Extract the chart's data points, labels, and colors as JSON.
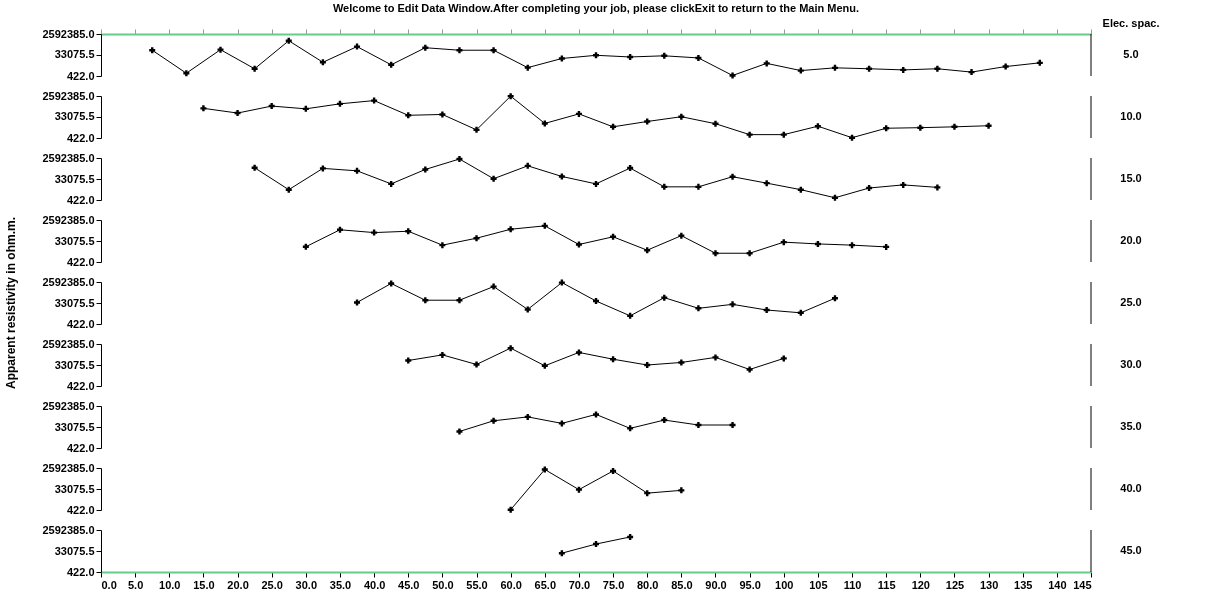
{
  "chart_data": [
    {
      "type": "line",
      "title": "Welcome to Edit Data Window.After completing your job, please clickExit to return to the Main Menu.",
      "annotations": [
        "5.0",
        "Elec. spac."
      ],
      "log": true,
      "marker": "cross",
      "tick_labels": "y",
      "xlim": [
        0,
        145
      ],
      "ylim": [
        422,
        2592385
      ],
      "yticks": [
        {
          "value": 422,
          "label": "422.0"
        },
        {
          "value": 33075.5,
          "label": "33075.5"
        },
        {
          "value": 2592385,
          "label": "2592385.0"
        }
      ],
      "x": [
        7.5,
        12.5,
        17.5,
        22.5,
        27.5,
        32.5,
        37.5,
        42.5,
        47.5,
        52.5,
        57.5,
        62.5,
        67.5,
        72.5,
        77.5,
        82.5,
        87.5,
        92.5,
        97.5,
        102.5,
        107.5,
        112.5,
        117.5,
        122.5,
        127.5,
        132.5,
        137.5
      ],
      "series": [
        {
          "color": "#000000",
          "values": [
            89000,
            750,
            100000,
            1900,
            640000,
            7300,
            190000,
            4300,
            150000,
            89000,
            89000,
            2400,
            16000,
            31000,
            22000,
            28000,
            18000,
            470,
            5800,
            1300,
            2300,
            1900,
            1500,
            1900,
            950,
            3000,
            6500
          ]
        }
      ]
    },
    {
      "type": "line",
      "annotations": [
        "10.0"
      ],
      "log": true,
      "marker": "cross",
      "tick_labels": "y",
      "xlim": [
        0,
        145
      ],
      "ylim": [
        422,
        2592385
      ],
      "yticks": [
        {
          "value": 422,
          "label": "422.0"
        },
        {
          "value": 33075.5,
          "label": "33075.5"
        },
        {
          "value": 2592385,
          "label": "2592385.0"
        }
      ],
      "x": [
        15,
        20,
        25,
        30,
        35,
        40,
        45,
        50,
        55,
        60,
        65,
        70,
        75,
        80,
        85,
        90,
        95,
        100,
        105,
        110,
        115,
        120,
        125,
        130
      ],
      "series": [
        {
          "color": "#000000",
          "values": [
            200000,
            75000,
            320000,
            180000,
            510000,
            1000000,
            47000,
            56000,
            2300,
            2500000,
            8700,
            63000,
            4300,
            13000,
            35000,
            8200,
            850,
            850,
            4900,
            450,
            3200,
            3600,
            4300,
            5400
          ]
        }
      ]
    },
    {
      "type": "line",
      "annotations": [
        "15.0"
      ],
      "log": true,
      "marker": "cross",
      "tick_labels": "y",
      "xlim": [
        0,
        145
      ],
      "ylim": [
        422,
        2592385
      ],
      "yticks": [
        {
          "value": 422,
          "label": "422.0"
        },
        {
          "value": 33075.5,
          "label": "33075.5"
        },
        {
          "value": 2592385,
          "label": "2592385.0"
        }
      ],
      "x": [
        22.5,
        27.5,
        32.5,
        37.5,
        42.5,
        47.5,
        52.5,
        57.5,
        62.5,
        67.5,
        72.5,
        77.5,
        82.5,
        87.5,
        92.5,
        97.5,
        102.5,
        107.5,
        112.5,
        117.5,
        122.5
      ],
      "series": [
        {
          "color": "#000000",
          "values": [
            340000,
            3600,
            300000,
            180000,
            12000,
            240000,
            2100000,
            35000,
            510000,
            56000,
            12000,
            320000,
            6500,
            6500,
            53000,
            14000,
            3600,
            670,
            5100,
            9700,
            5800
          ]
        }
      ]
    },
    {
      "type": "line",
      "annotations": [
        "20.0"
      ],
      "log": true,
      "marker": "cross",
      "tick_labels": "y",
      "xlim": [
        0,
        145
      ],
      "ylim": [
        422,
        2592385
      ],
      "yticks": [
        {
          "value": 422,
          "label": "422.0"
        },
        {
          "value": 33075.5,
          "label": "33075.5"
        },
        {
          "value": 2592385,
          "label": "2592385.0"
        }
      ],
      "x": [
        30,
        35,
        40,
        45,
        50,
        55,
        60,
        65,
        70,
        75,
        80,
        85,
        90,
        95,
        100,
        105,
        110,
        115
      ],
      "series": [
        {
          "color": "#000000",
          "values": [
            10000,
            340000,
            190000,
            250000,
            14000,
            59000,
            380000,
            770000,
            16000,
            79000,
            4900,
            100000,
            2600,
            2600,
            26000,
            18000,
            14000,
            9700
          ]
        }
      ]
    },
    {
      "type": "line",
      "annotations": [
        "25.0"
      ],
      "ylabel": "Apparent resistivity in ohm.m.",
      "log": true,
      "marker": "cross",
      "tick_labels": "y",
      "xlim": [
        0,
        145
      ],
      "ylim": [
        422,
        2592385
      ],
      "yticks": [
        {
          "value": 422,
          "label": "422.0"
        },
        {
          "value": 33075.5,
          "label": "33075.5"
        },
        {
          "value": 2592385,
          "label": "2592385.0"
        }
      ],
      "x": [
        37.5,
        42.5,
        47.5,
        52.5,
        57.5,
        62.5,
        67.5,
        72.5,
        77.5,
        82.5,
        87.5,
        92.5,
        97.5,
        102.5,
        107.5
      ],
      "series": [
        {
          "color": "#000000",
          "values": [
            37000,
            1900000,
            59000,
            59000,
            1000000,
            8700,
            2300000,
            50000,
            2300,
            100000,
            11000,
            25000,
            7700,
            4300,
            89000
          ]
        }
      ]
    },
    {
      "type": "line",
      "annotations": [
        "30.0"
      ],
      "log": true,
      "marker": "cross",
      "tick_labels": "y",
      "xlim": [
        0,
        145
      ],
      "ylim": [
        422,
        2592385
      ],
      "yticks": [
        {
          "value": 422,
          "label": "422.0"
        },
        {
          "value": 33075.5,
          "label": "33075.5"
        },
        {
          "value": 2592385,
          "label": "2592385.0"
        }
      ],
      "x": [
        45,
        50,
        55,
        60,
        65,
        70,
        75,
        80,
        85,
        90,
        95,
        100
      ],
      "series": [
        {
          "color": "#000000",
          "values": [
            84000,
            270000,
            37000,
            1100000,
            28000,
            450000,
            110000,
            33000,
            56000,
            160000,
            13000,
            130000
          ]
        }
      ]
    },
    {
      "type": "line",
      "annotations": [
        "35.0"
      ],
      "log": true,
      "marker": "cross",
      "tick_labels": "y",
      "xlim": [
        0,
        145
      ],
      "ylim": [
        422,
        2592385
      ],
      "yticks": [
        {
          "value": 422,
          "label": "422.0"
        },
        {
          "value": 33075.5,
          "label": "33075.5"
        },
        {
          "value": 2592385,
          "label": "2592385.0"
        }
      ],
      "x": [
        52.5,
        57.5,
        62.5,
        67.5,
        72.5,
        77.5,
        82.5,
        87.5,
        92.5
      ],
      "series": [
        {
          "color": "#000000",
          "values": [
            13000,
            120000,
            270000,
            70000,
            450000,
            25000,
            140000,
            50000,
            50000
          ]
        }
      ]
    },
    {
      "type": "line",
      "annotations": [
        "40.0"
      ],
      "log": true,
      "marker": "cross",
      "tick_labels": "y",
      "xlim": [
        0,
        145
      ],
      "ylim": [
        422,
        2592385
      ],
      "yticks": [
        {
          "value": 422,
          "label": "422.0"
        },
        {
          "value": 33075.5,
          "label": "33075.5"
        },
        {
          "value": 2592385,
          "label": "2592385.0"
        }
      ],
      "x": [
        60,
        65,
        70,
        75,
        80,
        85
      ],
      "series": [
        {
          "color": "#000000",
          "values": [
            450,
            1900000,
            29000,
            1400000,
            14000,
            25000
          ]
        }
      ]
    },
    {
      "type": "line",
      "annotations": [
        "45.0"
      ],
      "log": true,
      "marker": "cross",
      "xlim": [
        0,
        145
      ],
      "xticks": [
        {
          "value": 0,
          "label": "0.0"
        },
        {
          "value": 5,
          "label": "5.0"
        },
        {
          "value": 10,
          "label": "10.0"
        },
        {
          "value": 15,
          "label": "15.0"
        },
        {
          "value": 20,
          "label": "20.0"
        },
        {
          "value": 25,
          "label": "25.0"
        },
        {
          "value": 30,
          "label": "30.0"
        },
        {
          "value": 35,
          "label": "35.0"
        },
        {
          "value": 40,
          "label": "40.0"
        },
        {
          "value": 45,
          "label": "45.0"
        },
        {
          "value": 50,
          "label": "50.0"
        },
        {
          "value": 55,
          "label": "55.0"
        },
        {
          "value": 60,
          "label": "60.0"
        },
        {
          "value": 65,
          "label": "65.0"
        },
        {
          "value": 70,
          "label": "70.0"
        },
        {
          "value": 75,
          "label": "75.0"
        },
        {
          "value": 80,
          "label": "80.0"
        },
        {
          "value": 85,
          "label": "85.0"
        },
        {
          "value": 90,
          "label": "90.0"
        },
        {
          "value": 95,
          "label": "95.0"
        },
        100,
        105,
        110,
        115,
        120,
        125,
        130,
        135,
        140,
        145
      ],
      "ylim": [
        422,
        2592385
      ],
      "yticks": [
        {
          "value": 422,
          "label": "422.0"
        },
        {
          "value": 33075.5,
          "label": "33075.5"
        },
        {
          "value": 2592385,
          "label": "2592385.0"
        }
      ],
      "x": [
        67.5,
        72.5,
        77.5
      ],
      "series": [
        {
          "color": "#000000",
          "values": [
            21000,
            140000,
            610000
          ]
        }
      ]
    }
  ]
}
